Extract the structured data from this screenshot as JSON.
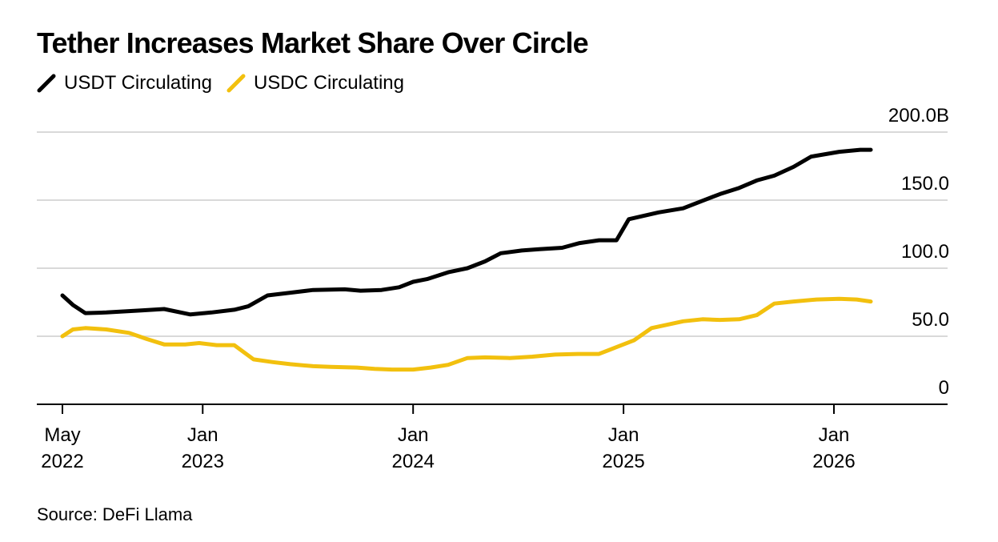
{
  "chart_data": {
    "type": "line",
    "title": "Tether Increases Market Share Over Circle",
    "source": "Source: DeFi Llama",
    "y_unit_suffix": "B",
    "ylim": [
      0,
      200
    ],
    "y_ticks": [
      0,
      50,
      100,
      150,
      200
    ],
    "y_tick_labels": [
      "0",
      "50.0",
      "100.0",
      "150.0",
      "200.0B"
    ],
    "x_ticks": [
      {
        "month": 4,
        "line1": "May",
        "line2": "2022"
      },
      {
        "month": 12,
        "line1": "Jan",
        "line2": "2023"
      },
      {
        "month": 24,
        "line1": "Jan",
        "line2": "2024"
      },
      {
        "month": 36,
        "line1": "Jan",
        "line2": "2025"
      },
      {
        "month": 48,
        "line1": "Jan",
        "line2": "2026"
      }
    ],
    "x_domain_months": [
      2.5,
      54
    ],
    "series": [
      {
        "name": "USDT Circulating",
        "color": "#000000",
        "points": [
          [
            4.0,
            80
          ],
          [
            4.6,
            73
          ],
          [
            5.3,
            67
          ],
          [
            6.5,
            67.5
          ],
          [
            8.5,
            69
          ],
          [
            9.8,
            70
          ],
          [
            11.3,
            66
          ],
          [
            12.5,
            67.5
          ],
          [
            13.8,
            69.5
          ],
          [
            14.6,
            72
          ],
          [
            15.7,
            80
          ],
          [
            17.0,
            82
          ],
          [
            18.3,
            84
          ],
          [
            20.1,
            84.5
          ],
          [
            21.0,
            83.5
          ],
          [
            22.2,
            84
          ],
          [
            23.2,
            86
          ],
          [
            24.0,
            90
          ],
          [
            24.8,
            92
          ],
          [
            26.0,
            97
          ],
          [
            27.1,
            100
          ],
          [
            28.1,
            105
          ],
          [
            29.0,
            111
          ],
          [
            30.2,
            113
          ],
          [
            31.2,
            114
          ],
          [
            32.5,
            115
          ],
          [
            33.5,
            118.5
          ],
          [
            34.6,
            120.5
          ],
          [
            35.6,
            120.5
          ],
          [
            36.3,
            136
          ],
          [
            38.0,
            141
          ],
          [
            39.4,
            144
          ],
          [
            40.5,
            149.5
          ],
          [
            41.5,
            154.5
          ],
          [
            42.6,
            159
          ],
          [
            43.6,
            164.5
          ],
          [
            44.6,
            168
          ],
          [
            45.7,
            174.5
          ],
          [
            46.7,
            182
          ],
          [
            48.3,
            185.5
          ],
          [
            49.5,
            187
          ],
          [
            50.1,
            187
          ]
        ]
      },
      {
        "name": "USDC Circulating",
        "color": "#F2C00E",
        "points": [
          [
            4.0,
            50
          ],
          [
            4.6,
            55
          ],
          [
            5.3,
            56
          ],
          [
            6.5,
            55
          ],
          [
            7.8,
            52.5
          ],
          [
            8.8,
            48
          ],
          [
            9.8,
            44
          ],
          [
            11.0,
            44
          ],
          [
            11.8,
            45
          ],
          [
            12.8,
            43.5
          ],
          [
            13.8,
            43.5
          ],
          [
            14.9,
            33
          ],
          [
            16.0,
            31
          ],
          [
            17.0,
            29.5
          ],
          [
            18.3,
            28
          ],
          [
            19.3,
            27.5
          ],
          [
            20.8,
            27
          ],
          [
            21.8,
            26
          ],
          [
            22.8,
            25.5
          ],
          [
            24.0,
            25.5
          ],
          [
            25.0,
            27
          ],
          [
            26.0,
            29
          ],
          [
            27.1,
            34
          ],
          [
            28.1,
            34.5
          ],
          [
            29.5,
            34
          ],
          [
            30.8,
            35
          ],
          [
            32.1,
            36.5
          ],
          [
            33.4,
            37
          ],
          [
            34.6,
            37
          ],
          [
            35.6,
            42
          ],
          [
            36.6,
            47
          ],
          [
            37.6,
            56
          ],
          [
            39.4,
            61
          ],
          [
            40.5,
            62.5
          ],
          [
            41.5,
            62
          ],
          [
            42.6,
            62.5
          ],
          [
            43.6,
            65.5
          ],
          [
            44.6,
            74
          ],
          [
            45.7,
            75.5
          ],
          [
            47.0,
            77
          ],
          [
            48.3,
            77.5
          ],
          [
            49.3,
            77
          ],
          [
            50.1,
            75.5
          ]
        ]
      }
    ]
  }
}
